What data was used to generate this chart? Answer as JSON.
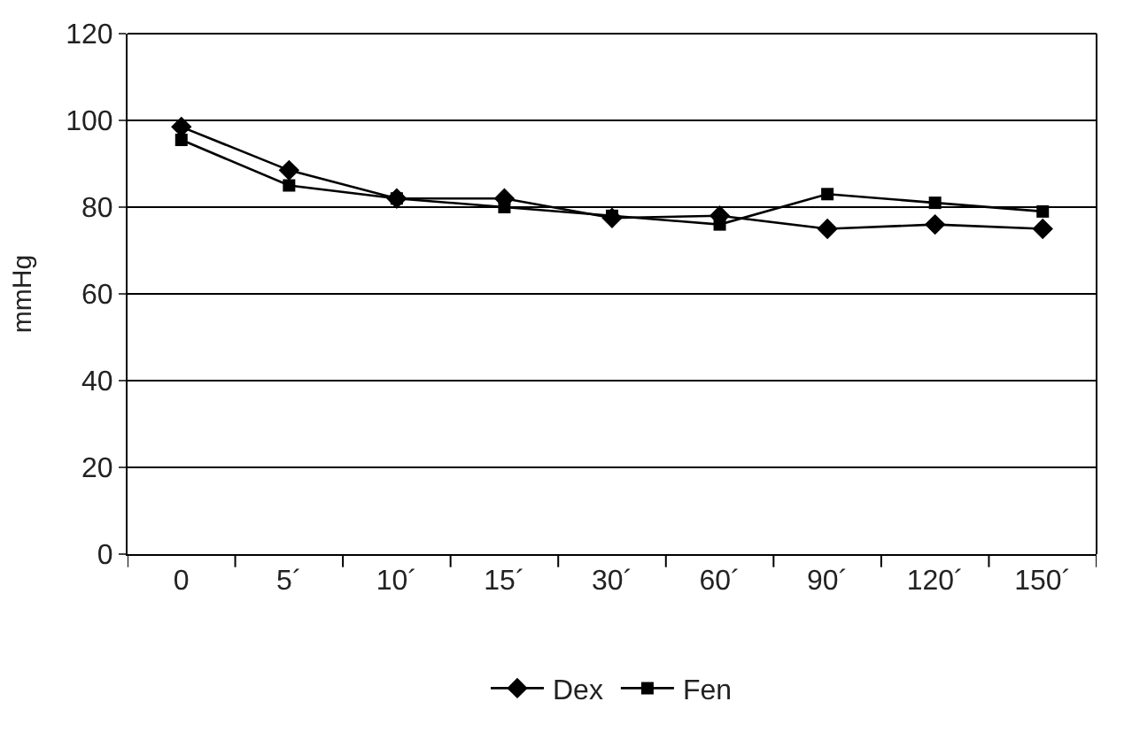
{
  "chart_data": {
    "type": "line",
    "ylabel": "mmHg",
    "categories": [
      "0",
      "5´",
      "10´",
      "15´",
      "30´",
      "60´",
      "90´",
      "120´",
      "150´"
    ],
    "series": [
      {
        "name": "Dex",
        "color": "#000000",
        "marker": "diamond",
        "values": [
          98.5,
          88.5,
          82,
          82,
          77.5,
          78,
          75,
          76,
          75
        ]
      },
      {
        "name": "Fen",
        "color": "#000000",
        "marker": "square",
        "values": [
          95.5,
          85,
          82,
          80,
          78,
          76,
          83,
          81,
          79
        ]
      }
    ],
    "ylim": [
      0,
      120
    ],
    "yticks": [
      0,
      20,
      40,
      60,
      80,
      100,
      120
    ],
    "grid": "y",
    "legend": "bottom",
    "line_style": "solid"
  }
}
